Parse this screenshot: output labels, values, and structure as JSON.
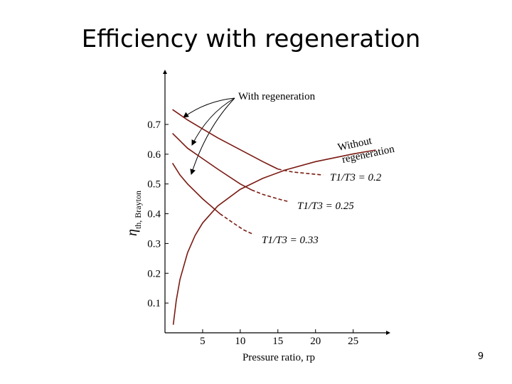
{
  "chart_data": {
    "type": "line",
    "title": "Efficiency with regeneration",
    "xlabel": "Pressure ratio, rp",
    "ylabel": "η",
    "ylabel_sub": "th, Brayton",
    "xlim": [
      0,
      29
    ],
    "ylim": [
      0,
      0.86
    ],
    "xticks": [
      5,
      10,
      15,
      20,
      25
    ],
    "yticks": [
      0.1,
      0.2,
      0.3,
      0.4,
      0.5,
      0.6,
      0.7
    ],
    "series": [
      {
        "color": "#7a1a12",
        "dashed": false,
        "x": [
          1.1,
          1.5,
          2,
          3,
          4,
          5,
          7,
          10,
          13,
          16,
          20,
          25,
          28
        ],
        "values": [
          0.027,
          0.109,
          0.18,
          0.269,
          0.327,
          0.369,
          0.426,
          0.482,
          0.519,
          0.547,
          0.575,
          0.601,
          0.614
        ]
      },
      {
        "color": "#7a1a12",
        "dashed": false,
        "x": [
          1,
          3,
          5,
          7,
          10,
          13,
          15
        ],
        "values": [
          0.75,
          0.715,
          0.685,
          0.655,
          0.615,
          0.575,
          0.55
        ]
      },
      {
        "color": "#7a1a12",
        "dashed": true,
        "x": [
          15,
          17,
          19,
          21
        ],
        "values": [
          0.55,
          0.54,
          0.535,
          0.53
        ]
      },
      {
        "color": "#7a1a12",
        "dashed": false,
        "x": [
          1,
          3,
          5,
          7,
          10,
          11.5
        ],
        "values": [
          0.67,
          0.62,
          0.585,
          0.55,
          0.5,
          0.48
        ]
      },
      {
        "color": "#7a1a12",
        "dashed": true,
        "x": [
          11.5,
          13,
          15,
          16.5
        ],
        "values": [
          0.48,
          0.465,
          0.45,
          0.44
        ]
      },
      {
        "color": "#7a1a12",
        "dashed": false,
        "x": [
          1,
          2,
          3,
          5,
          7.3
        ],
        "values": [
          0.57,
          0.53,
          0.5,
          0.45,
          0.4
        ]
      },
      {
        "color": "#7a1a12",
        "dashed": true,
        "x": [
          7.3,
          9,
          10.5,
          11.8
        ],
        "values": [
          0.4,
          0.37,
          0.345,
          0.33
        ]
      }
    ],
    "annotations": {
      "with_regeneration": "With regeneration",
      "without_1": "Without",
      "without_2": "regeneration",
      "ratio_1": "T1/T3 = 0.2",
      "ratio_2": "T1/T3 = 0.25",
      "ratio_3": "T1/T3 = 0.33"
    }
  },
  "page_number": "9"
}
